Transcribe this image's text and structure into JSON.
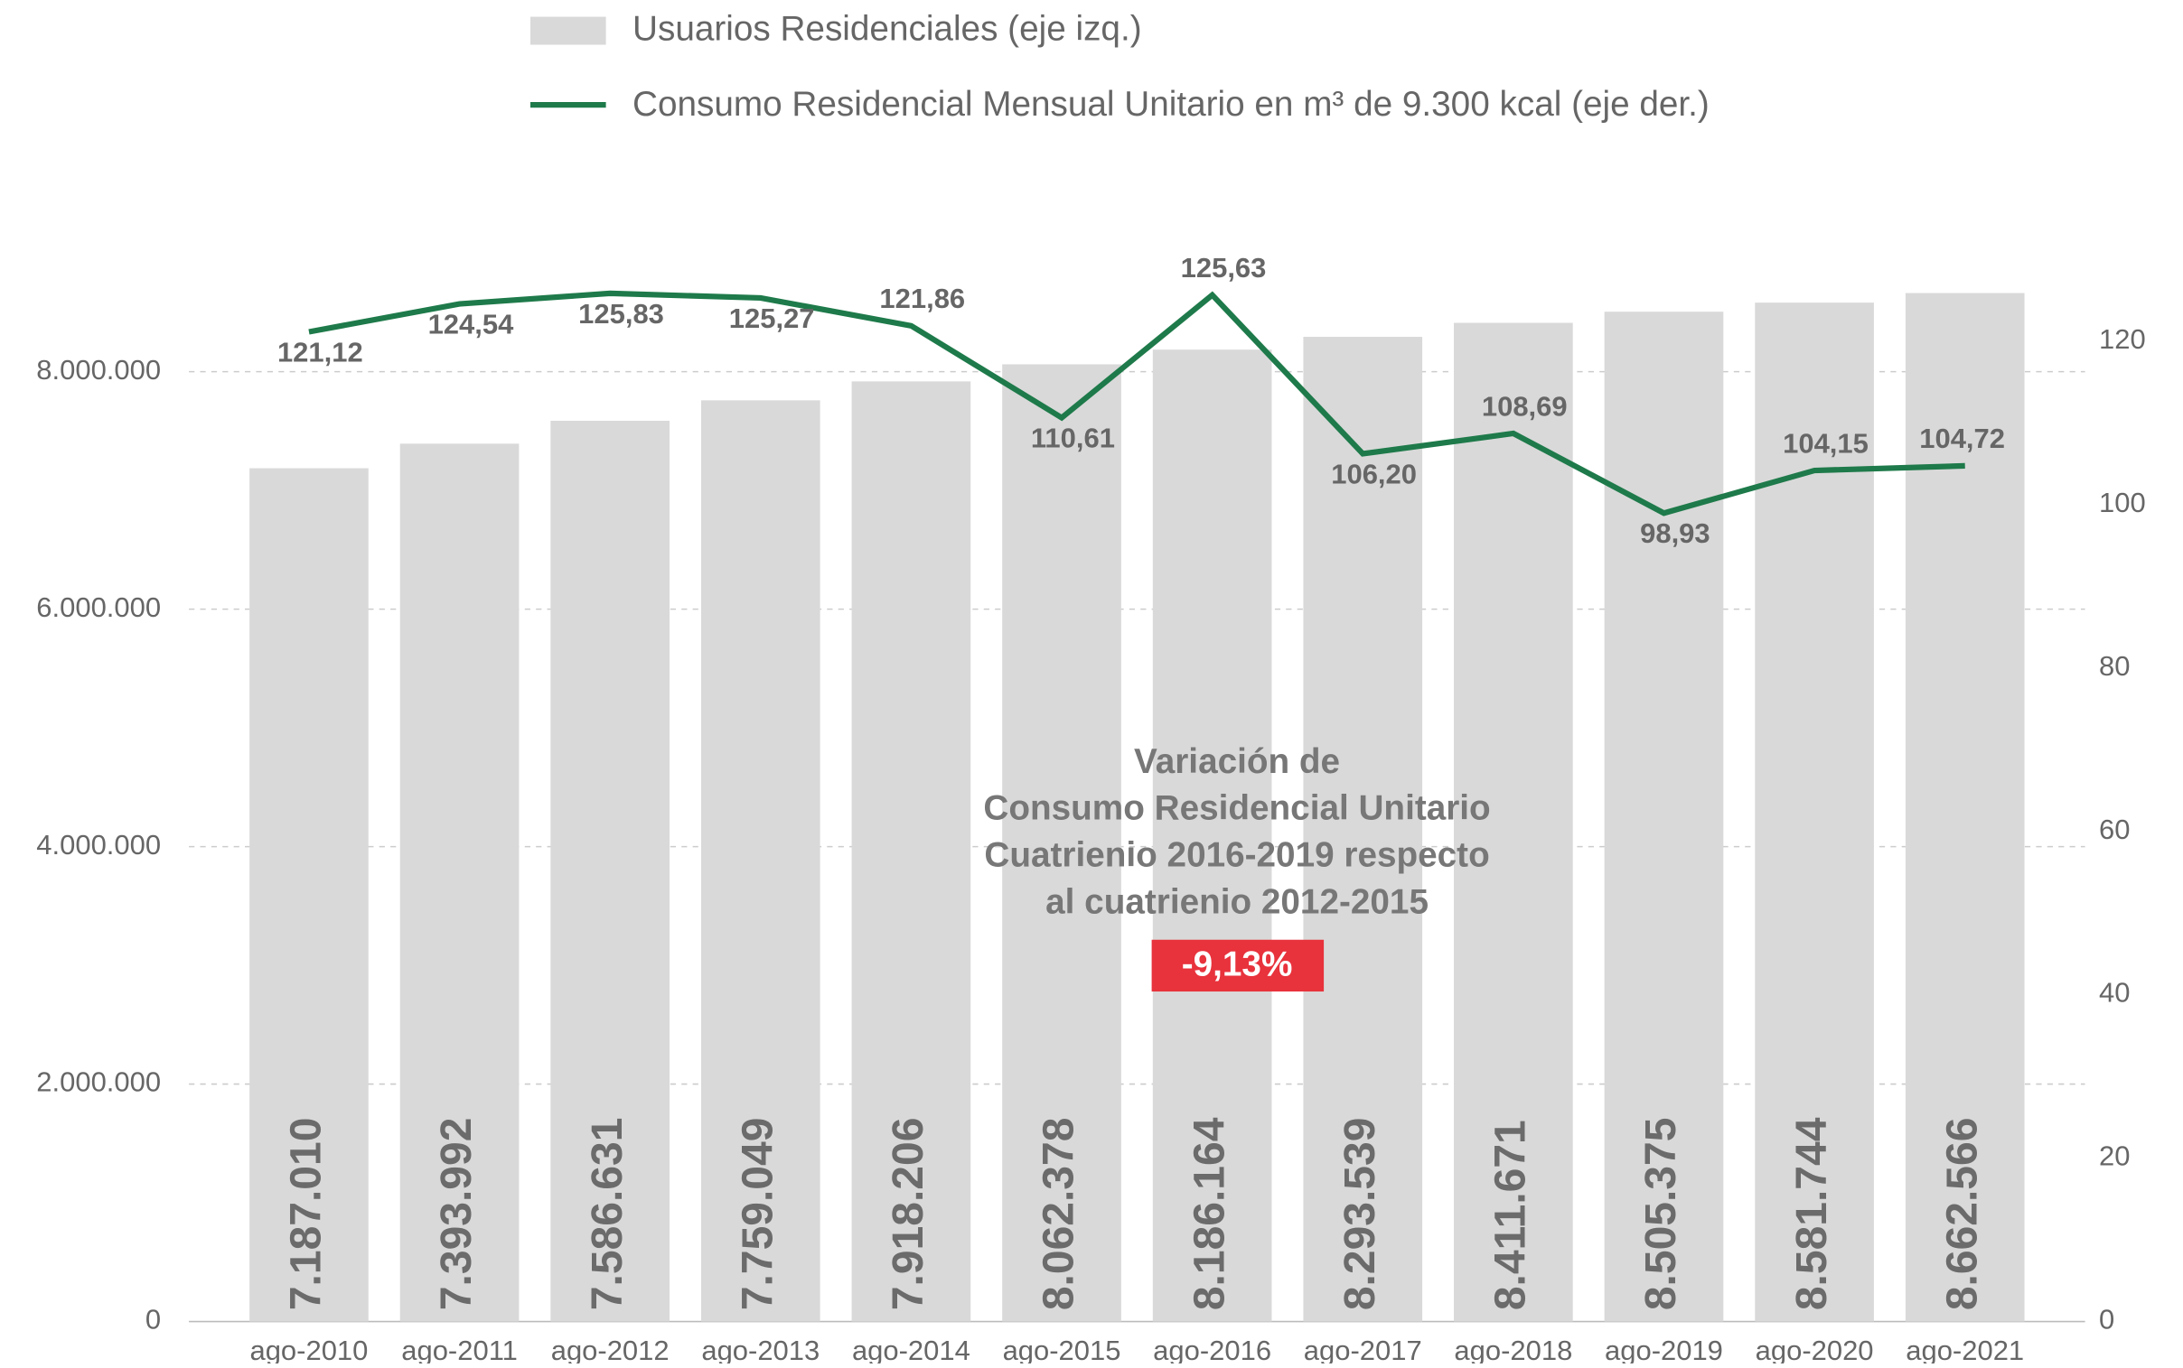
{
  "chart_data": {
    "type": "bar_line",
    "categories": [
      "ago-2010",
      "ago-2011",
      "ago-2012",
      "ago-2013",
      "ago-2014",
      "ago-2015",
      "ago-2016",
      "ago-2017",
      "ago-2018",
      "ago-2019",
      "ago-2020",
      "ago-2021"
    ],
    "series": [
      {
        "name": "Usuarios Residenciales (eje izq.)",
        "type": "bar",
        "color": "#d9d9d9",
        "values": [
          7187010,
          7393992,
          7586631,
          7759049,
          7918206,
          8062378,
          8186164,
          8293539,
          8411671,
          8505375,
          8581744,
          8662566
        ],
        "value_labels": [
          "7.187.010",
          "7.393.992",
          "7.586.631",
          "7.759.049",
          "7.918.206",
          "8.062.378",
          "8.186.164",
          "8.293.539",
          "8.411.671",
          "8.505.375",
          "8.581.744",
          "8.662.566"
        ]
      },
      {
        "name": "Consumo Residencial Mensual Unitario en m³ de 9.300 kcal (eje der.)",
        "type": "line",
        "axis": "y2",
        "color": "#1e7a4a",
        "values": [
          121.12,
          124.54,
          125.83,
          125.27,
          121.86,
          110.61,
          125.63,
          106.2,
          108.69,
          98.93,
          104.15,
          104.72
        ],
        "value_labels": [
          "121,12",
          "124,54",
          "125,83",
          "125,27",
          "121,86",
          "110,61",
          "125,63",
          "106,20",
          "108,69",
          "98,93",
          "104,15",
          "104,72"
        ]
      }
    ],
    "ylim": [
      0,
      10000000
    ],
    "yticks": [
      0,
      {
        "value": 2000000,
        "label": "2.000.000"
      },
      {
        "value": 4000000,
        "label": "4.000.000"
      },
      {
        "value": 6000000,
        "label": "6.000.000"
      },
      {
        "value": 8000000,
        "label": "8.000.000"
      }
    ],
    "y2lim": [
      0,
      145.3
    ],
    "y2ticks": [
      0,
      20,
      40,
      60,
      80,
      100,
      120
    ],
    "grid": true,
    "annotation": {
      "lines": [
        "Variación de",
        "Consumo Residencial Unitario",
        "Cuatrienio 2016-2019 respecto",
        "al cuatrienio 2012-2015"
      ],
      "value": -9.13,
      "value_label": "-9,13%",
      "color": "#e8323c"
    }
  }
}
